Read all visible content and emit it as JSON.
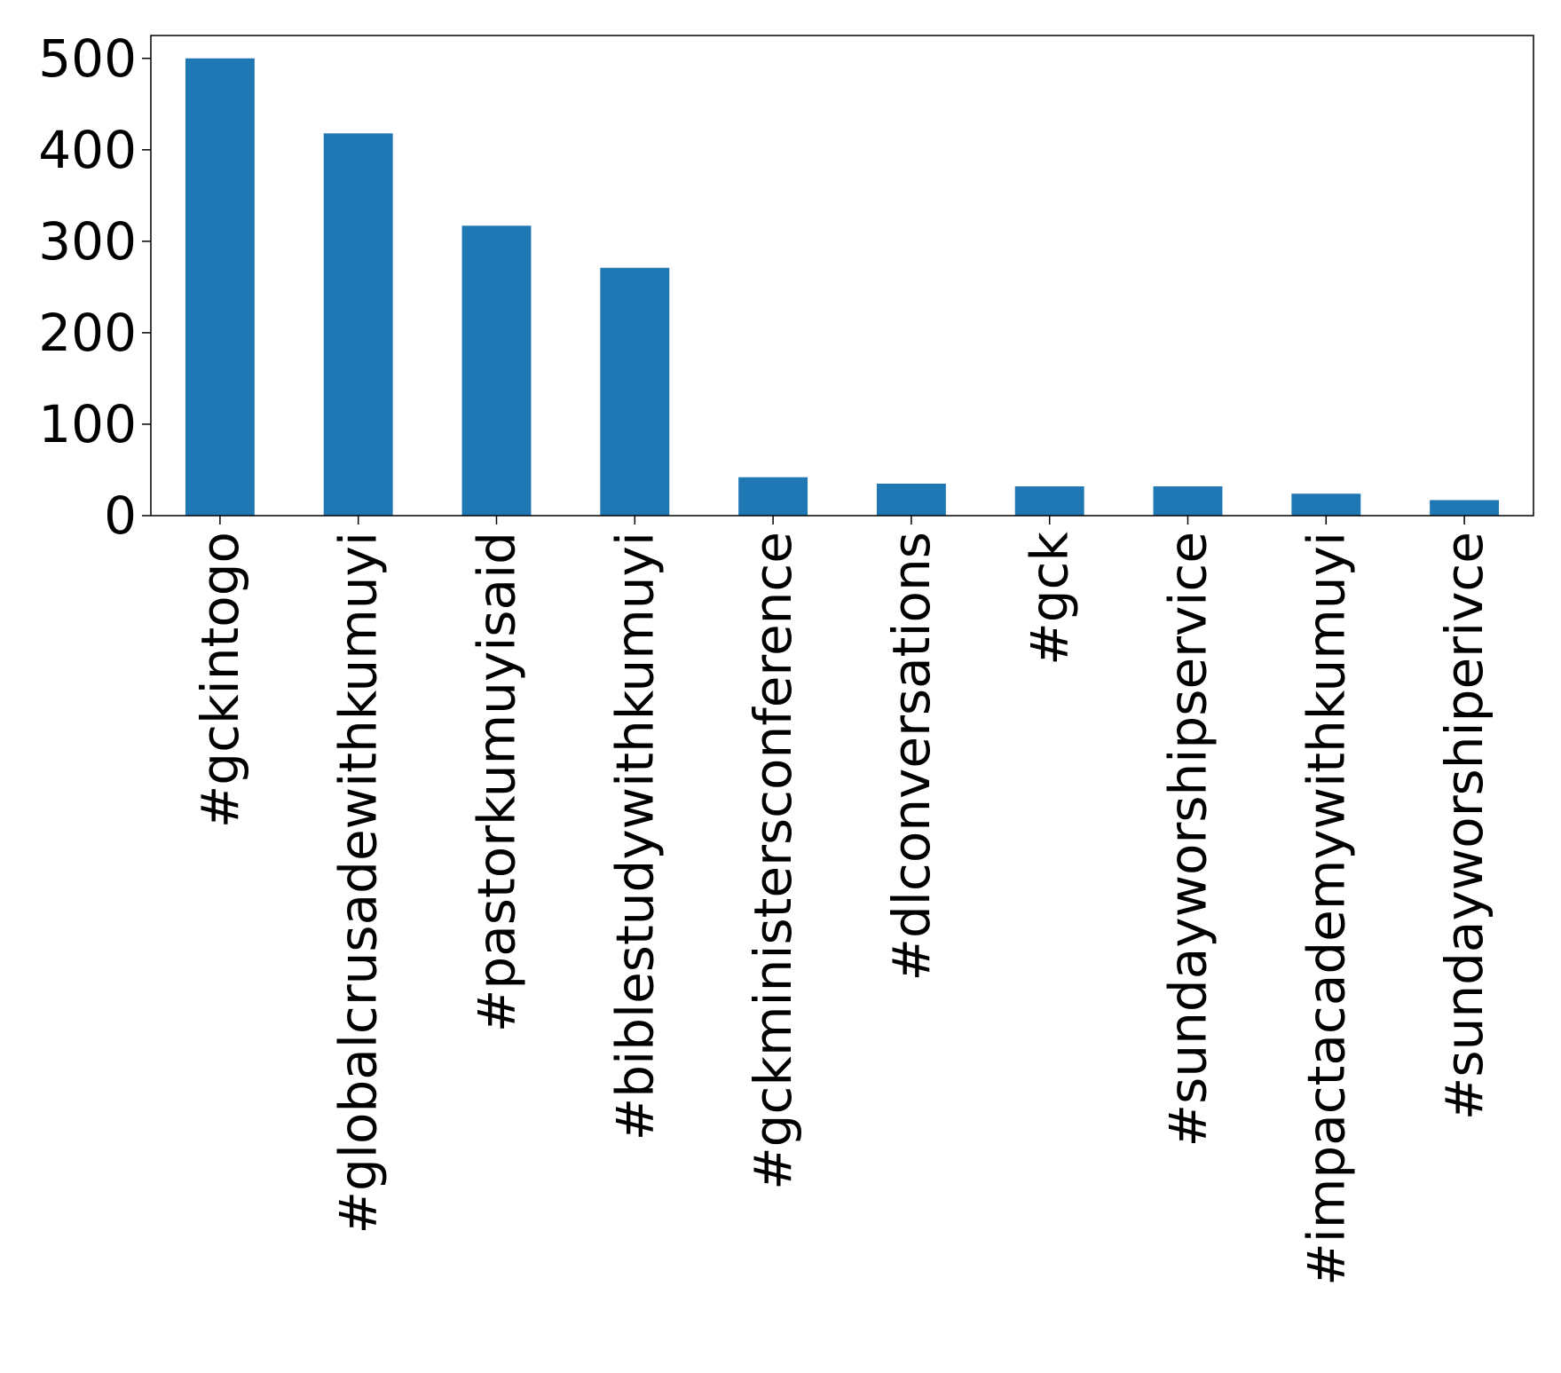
{
  "chart_data": {
    "type": "bar",
    "title": "",
    "xlabel": "",
    "ylabel": "",
    "categories": [
      "#gckintogo",
      "#globalcrusadewithkumuyi",
      "#pastorkumuyisaid",
      "#biblestudywithkumuyi",
      "#gckministersconference",
      "#dlconversations",
      "#gck",
      "#sundayworshipservice",
      "#impactacademywithkumuyi",
      "#sundayworshiperivce"
    ],
    "values": [
      500,
      418,
      317,
      271,
      42,
      35,
      32,
      32,
      24,
      17
    ],
    "ylim": [
      0,
      525
    ],
    "yticks": [
      0,
      100,
      200,
      300,
      400,
      500
    ],
    "ytick_labels": [
      "0",
      "100",
      "200",
      "300",
      "400",
      "500"
    ],
    "grid": false,
    "legend": "none",
    "bar_color": "#1f77b4"
  }
}
